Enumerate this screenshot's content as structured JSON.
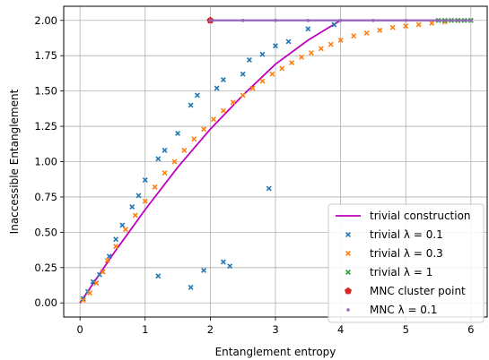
{
  "chart_data": {
    "type": "scatter",
    "xlabel": "Entanglement entropy",
    "ylabel": "Inaccessible Entanglement",
    "xlim": [
      -0.25,
      6.25
    ],
    "ylim": [
      -0.1,
      2.1
    ],
    "xticks": [
      "0",
      "1",
      "2",
      "3",
      "4",
      "5",
      "6"
    ],
    "yticks": [
      "0.00",
      "0.25",
      "0.50",
      "0.75",
      "1.00",
      "1.25",
      "1.50",
      "1.75",
      "2.00"
    ],
    "grid": true,
    "legend_position": "lower-right",
    "series": [
      {
        "name": "trivial construction",
        "kind": "line",
        "color": "#bf00bf",
        "x": [
          0,
          0.5,
          1,
          1.5,
          2,
          2.5,
          3,
          3.5,
          4,
          4.5,
          5,
          5.5,
          6
        ],
        "y": [
          0,
          0.34,
          0.66,
          0.96,
          1.23,
          1.47,
          1.69,
          1.86,
          2.0,
          2.0,
          2.0,
          2.0,
          2.0
        ]
      },
      {
        "name": "trivial λ = 0.1",
        "kind": "x-marker",
        "color": "#1f77b4",
        "x": [
          0.05,
          0.12,
          0.2,
          0.3,
          0.35,
          0.45,
          0.55,
          0.65,
          0.8,
          0.9,
          1.0,
          1.2,
          1.3,
          1.5,
          1.7,
          1.8,
          2.1,
          2.2,
          2.5,
          2.6,
          2.8,
          3.0,
          3.2,
          3.5,
          3.9,
          1.2,
          1.7,
          1.9,
          2.2,
          2.3,
          2.9
        ],
        "y": [
          0.03,
          0.08,
          0.15,
          0.2,
          0.22,
          0.33,
          0.45,
          0.55,
          0.68,
          0.76,
          0.87,
          1.02,
          1.08,
          1.2,
          1.4,
          1.47,
          1.52,
          1.58,
          1.62,
          1.72,
          1.76,
          1.82,
          1.85,
          1.94,
          1.97,
          0.19,
          0.11,
          0.23,
          0.29,
          0.26,
          0.81
        ]
      },
      {
        "name": "trivial λ = 0.3",
        "kind": "x-marker",
        "color": "#ff7f0e",
        "x": [
          0.05,
          0.15,
          0.25,
          0.35,
          0.42,
          0.55,
          0.7,
          0.85,
          1.0,
          1.15,
          1.3,
          1.45,
          1.6,
          1.75,
          1.9,
          2.05,
          2.2,
          2.35,
          2.5,
          2.65,
          2.8,
          2.95,
          3.1,
          3.25,
          3.4,
          3.55,
          3.7,
          3.85,
          4.0,
          4.2,
          4.4,
          4.6,
          4.8,
          5.0,
          5.2,
          5.4,
          5.6,
          5.8
        ],
        "y": [
          0.02,
          0.07,
          0.14,
          0.22,
          0.3,
          0.4,
          0.52,
          0.62,
          0.72,
          0.82,
          0.92,
          1.0,
          1.08,
          1.16,
          1.23,
          1.3,
          1.36,
          1.42,
          1.47,
          1.52,
          1.57,
          1.62,
          1.66,
          1.7,
          1.74,
          1.77,
          1.8,
          1.83,
          1.86,
          1.89,
          1.91,
          1.93,
          1.95,
          1.96,
          1.97,
          1.98,
          1.99,
          2.0
        ]
      },
      {
        "name": "trivial λ = 1",
        "kind": "x-marker",
        "color": "#2ca02c",
        "x": [
          5.5,
          5.6,
          5.7,
          5.8,
          5.9,
          6.0
        ],
        "y": [
          2.0,
          2.0,
          2.0,
          2.0,
          2.0,
          2.0
        ]
      },
      {
        "name": "MNC cluster point",
        "kind": "pentagon",
        "color": "#d62728",
        "x": [
          2.0
        ],
        "y": [
          2.0
        ]
      },
      {
        "name": "MNC λ = 0.1",
        "kind": "dot",
        "color": "#9467bd",
        "x": [
          2.0,
          2.5,
          3.0,
          3.5,
          4.0,
          4.5,
          5.0,
          5.5,
          6.0
        ],
        "y": [
          2.0,
          2.0,
          2.0,
          2.0,
          2.0,
          2.0,
          2.0,
          2.0,
          2.0
        ]
      }
    ]
  }
}
